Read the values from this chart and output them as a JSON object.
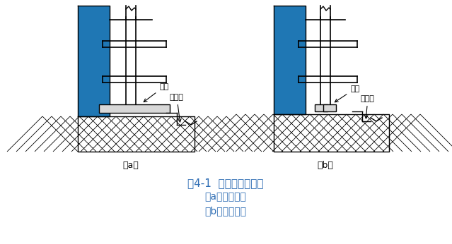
{
  "fig_width": 6.39,
  "fig_height": 3.46,
  "dpi": 100,
  "bg_color": "#ffffff",
  "line_color": "#000000",
  "title_text": "图4-1  普通脚手架基底",
  "subtitle_a": "（a）横铺垫板",
  "subtitle_b": "（b）顺铺垫板",
  "label_a": "（a）",
  "label_b": "（b）",
  "title_color": "#2e6db4",
  "subtitle_color": "#2e6db4",
  "label_color": "#000000",
  "annot_dizhu": "垫木",
  "annot_paishui": "排水沟",
  "annot_color": "#000000"
}
